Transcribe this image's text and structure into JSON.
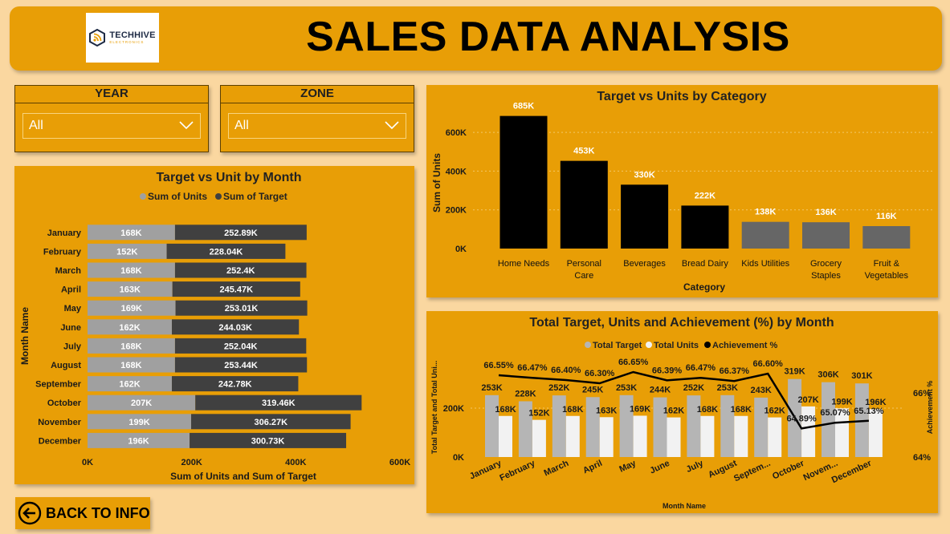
{
  "header": {
    "title": "SALES DATA ANALYSIS",
    "logo_name": "TECHHIVE",
    "logo_sub": "ELECTRONICS"
  },
  "slicers": {
    "year": {
      "label": "YEAR",
      "value": "All"
    },
    "zone": {
      "label": "ZONE",
      "value": "All"
    }
  },
  "back_button": {
    "label": "BACK TO INFO",
    "icon": "arrow-left-circle-icon"
  },
  "colors": {
    "panel": "#e89e06",
    "background": "#fad7a0",
    "units_gray": "#a0a0a0",
    "target_dark": "#404040",
    "bar_black": "#000000",
    "bar_gray": "#666666",
    "column_target": "#b5b5b5",
    "column_units": "#f2f2f2"
  },
  "chart_data": [
    {
      "id": "month-bar",
      "type": "bar",
      "orientation": "horizontal",
      "stacked": true,
      "title": "Target vs Unit by Month",
      "xlabel": "Sum of Units and Sum of Target",
      "ylabel": "Month Name",
      "xlim": [
        0,
        600000
      ],
      "xticks": [
        "0K",
        "200K",
        "400K",
        "600K"
      ],
      "legend_position": "top",
      "categories": [
        "January",
        "February",
        "March",
        "April",
        "May",
        "June",
        "July",
        "August",
        "September",
        "October",
        "November",
        "December"
      ],
      "series": [
        {
          "name": "Sum of Units",
          "values": [
            168000,
            152000,
            168000,
            163000,
            169000,
            162000,
            168000,
            168000,
            162000,
            207000,
            199000,
            196000
          ],
          "labels": [
            "168K",
            "152K",
            "168K",
            "163K",
            "169K",
            "162K",
            "168K",
            "168K",
            "162K",
            "207K",
            "199K",
            "196K"
          ]
        },
        {
          "name": "Sum of Target",
          "values": [
            252890,
            228040,
            252400,
            245470,
            253010,
            244030,
            252040,
            253440,
            242780,
            319460,
            306270,
            300730
          ],
          "labels": [
            "252.89K",
            "228.04K",
            "252.4K",
            "245.47K",
            "253.01K",
            "244.03K",
            "252.04K",
            "253.44K",
            "242.78K",
            "319.46K",
            "306.27K",
            "300.73K"
          ]
        }
      ]
    },
    {
      "id": "category-bar",
      "type": "bar",
      "title": "Target vs Units by Category",
      "xlabel": "Category",
      "ylabel": "Sum of Units",
      "ylim": [
        0,
        700000
      ],
      "yticks": [
        "0K",
        "200K",
        "400K",
        "600K"
      ],
      "grid": true,
      "categories": [
        "Home Needs",
        "Personal Care",
        "Beverages",
        "Bread Dairy",
        "Kids Utilities",
        "Grocery Staples",
        "Fruit & Vegetables"
      ],
      "category_lines": [
        [
          "Home Needs"
        ],
        [
          "Personal",
          "Care"
        ],
        [
          "Beverages"
        ],
        [
          "Bread Dairy"
        ],
        [
          "Kids Utilities"
        ],
        [
          "Grocery",
          "Staples"
        ],
        [
          "Fruit &",
          "Vegetables"
        ]
      ],
      "values": [
        685000,
        453000,
        330000,
        222000,
        138000,
        136000,
        116000
      ],
      "labels": [
        "685K",
        "453K",
        "330K",
        "222K",
        "138K",
        "136K",
        "116K"
      ]
    },
    {
      "id": "combo",
      "type": "bar",
      "combo_line": true,
      "title": "Total Target, Units and Achievement (%) by Month",
      "xlabel": "Month Name",
      "ylabel": "Total Target and Total Uni...",
      "y2label": "Achievement %",
      "ylim": [
        0,
        400000
      ],
      "yticks": [
        "0K",
        "200K"
      ],
      "y2lim": [
        64,
        67
      ],
      "y2ticks": [
        "64%",
        "66%"
      ],
      "legend_position": "top",
      "categories": [
        "January",
        "February",
        "March",
        "April",
        "May",
        "June",
        "July",
        "August",
        "September",
        "October",
        "November",
        "December"
      ],
      "category_labels": [
        "January",
        "February",
        "March",
        "April",
        "May",
        "June",
        "July",
        "August",
        "Septem...",
        "October",
        "Novem...",
        "December"
      ],
      "series": [
        {
          "name": "Total Target",
          "values": [
            253000,
            228000,
            252000,
            245000,
            253000,
            244000,
            252000,
            253000,
            243000,
            319000,
            306000,
            301000
          ],
          "labels": [
            "253K",
            "228K",
            "252K",
            "245K",
            "253K",
            "244K",
            "252K",
            "253K",
            "243K",
            "319K",
            "306K",
            "301K"
          ]
        },
        {
          "name": "Total Units",
          "values": [
            168000,
            152000,
            168000,
            163000,
            169000,
            162000,
            168000,
            168000,
            162000,
            207000,
            199000,
            196000
          ],
          "labels": [
            "168K",
            "152K",
            "168K",
            "163K",
            "169K",
            "162K",
            "168K",
            "168K",
            "162K",
            "207K",
            "199K",
            "196K"
          ]
        },
        {
          "name": "Achievement %",
          "axis": "y2",
          "values": [
            66.55,
            66.47,
            66.4,
            66.3,
            66.65,
            66.39,
            66.47,
            66.37,
            66.6,
            64.89,
            65.07,
            65.13
          ],
          "labels": [
            "66.55%",
            "66.47%",
            "66.40%",
            "66.30%",
            "66.65%",
            "66.39%",
            "66.47%",
            "66.37%",
            "66.60%",
            "64.89%",
            "65.07%",
            "65.13%"
          ]
        }
      ]
    }
  ]
}
